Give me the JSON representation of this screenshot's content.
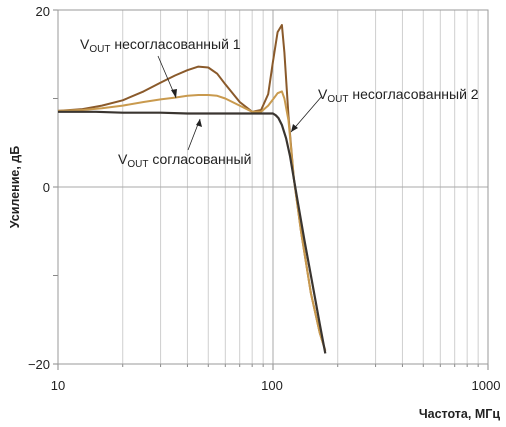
{
  "chart_data": {
    "type": "line",
    "x_scale": "log",
    "xlim": [
      10,
      1000
    ],
    "ylim": [
      -20,
      20
    ],
    "grid": true,
    "xlabel": "Частота, МГц",
    "ylabel": "Усиление, дБ",
    "x_ticks": [
      "10",
      "100",
      "1000"
    ],
    "y_ticks": [
      "20",
      "0",
      "−20"
    ],
    "series": [
      {
        "name": "VOUT несогласованный 1",
        "color": "#8a5a2b",
        "x": [
          10,
          13,
          16,
          20,
          25,
          30,
          35,
          40,
          45,
          50,
          55,
          60,
          70,
          80,
          88,
          95,
          100,
          105,
          110,
          113,
          118,
          125,
          135,
          150,
          165,
          175
        ],
        "y": [
          8.6,
          8.8,
          9.2,
          9.8,
          10.8,
          11.8,
          12.6,
          13.2,
          13.6,
          13.5,
          12.8,
          11.6,
          9.6,
          8.5,
          8.7,
          10.5,
          14.2,
          17.5,
          18.3,
          15.2,
          8.0,
          1.0,
          -5.0,
          -12.0,
          -16.5,
          -18.5
        ]
      },
      {
        "name": "VOUT несогласованный 2",
        "color": "#c99a4e",
        "x": [
          10,
          13,
          16,
          20,
          25,
          30,
          35,
          40,
          45,
          50,
          55,
          60,
          70,
          80,
          88,
          95,
          100,
          105,
          110,
          113,
          118,
          125,
          135,
          150,
          165,
          175
        ],
        "y": [
          8.6,
          8.7,
          8.9,
          9.2,
          9.6,
          9.9,
          10.1,
          10.3,
          10.4,
          10.4,
          10.3,
          10.0,
          9.2,
          8.5,
          8.5,
          9.2,
          9.9,
          10.6,
          10.8,
          10.0,
          7.5,
          1.0,
          -5.0,
          -12.0,
          -16.5,
          -18.5
        ]
      },
      {
        "name": "VOUT согласованный",
        "color": "#3a3530",
        "x": [
          10,
          15,
          20,
          30,
          40,
          50,
          60,
          70,
          80,
          90,
          95,
          100,
          103,
          106,
          110,
          115,
          120,
          130,
          140,
          150,
          165,
          175
        ],
        "y": [
          8.5,
          8.5,
          8.4,
          8.4,
          8.3,
          8.3,
          8.3,
          8.3,
          8.3,
          8.3,
          8.3,
          8.3,
          8.1,
          7.8,
          7.0,
          5.5,
          3.5,
          -1.5,
          -6.0,
          -10.0,
          -15.5,
          -18.8
        ]
      }
    ],
    "annotations": [
      {
        "main": "V",
        "sub": "OUT",
        "rest": " несогласованный 1"
      },
      {
        "main": "V",
        "sub": "OUT",
        "rest": " несогласованный 2"
      },
      {
        "main": "V",
        "sub": "OUT",
        "rest": " согласованный"
      }
    ]
  }
}
